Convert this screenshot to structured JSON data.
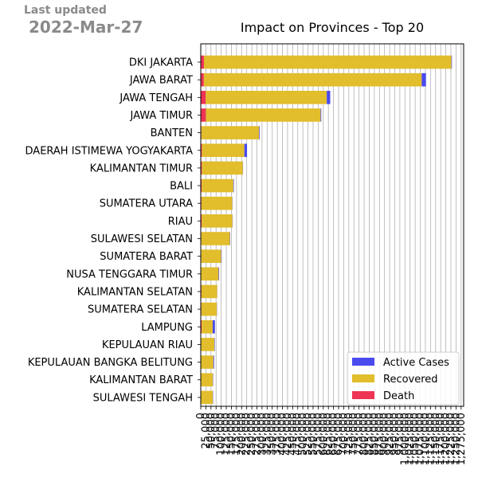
{
  "header": {
    "last_updated_label": "Last updated",
    "last_updated_date": "2022-Mar-27"
  },
  "chart_data": {
    "type": "bar",
    "orientation": "horizontal",
    "stacked": true,
    "title": "Impact on Provinces - Top 20",
    "xlabel": "",
    "ylabel": "",
    "xlim": [
      0,
      1287500
    ],
    "x_ticks": [
      0,
      25000,
      50000,
      75000,
      100000,
      125000,
      150000,
      175000,
      200000,
      225000,
      250000,
      275000,
      300000,
      325000,
      350000,
      375000,
      400000,
      425000,
      450000,
      475000,
      500000,
      525000,
      550000,
      575000,
      600000,
      625000,
      650000,
      675000,
      700000,
      725000,
      750000,
      775000,
      800000,
      825000,
      850000,
      875000,
      900000,
      925000,
      950000,
      975000,
      1000000,
      1025000,
      1050000,
      1075000,
      1100000,
      1125000,
      1150000,
      1175000,
      1200000,
      1225000,
      1250000,
      1275000
    ],
    "x_tick_labels": [
      "0",
      "25,000",
      "50,000",
      "75,000",
      "100,000",
      "125,000",
      "150,000",
      "175,000",
      "200,000",
      "225,000",
      "250,000",
      "275,000",
      "300,000",
      "325,000",
      "350,000",
      "375,000",
      "400,000",
      "425,000",
      "450,000",
      "475,000",
      "500,000",
      "525,000",
      "550,000",
      "575,000",
      "600,000",
      "625,000",
      "650,000",
      "675,000",
      "700,000",
      "725,000",
      "750,000",
      "775,000",
      "800,000",
      "825,000",
      "850,000",
      "875,000",
      "900,000",
      "925,000",
      "950,000",
      "975,000",
      "1,000,000",
      "1,025,000",
      "1,050,000",
      "1,075,000",
      "1,100,000",
      "1,125,000",
      "1,150,000",
      "1,175,000",
      "1,200,000",
      "1,225,000",
      "1,250,000",
      "1,275,000"
    ],
    "grid": "vertical",
    "legend_position": "bottom-right",
    "categories": [
      "DKI JAKARTA",
      "JAWA BARAT",
      "JAWA TENGAH",
      "JAWA TIMUR",
      "BANTEN",
      "DAERAH ISTIMEWA YOGYAKARTA",
      "KALIMANTAN TIMUR",
      "BALI",
      "SUMATERA UTARA",
      "RIAU",
      "SULAWESI SELATAN",
      "SUMATERA BARAT",
      "NUSA TENGGARA TIMUR",
      "KALIMANTAN SELATAN",
      "SUMATERA SELATAN",
      "LAMPUNG",
      "KEPULAUAN RIAU",
      "KEPULAUAN BANGKA BELITUNG",
      "KALIMANTAN BARAT",
      "SULAWESI TENGAH"
    ],
    "series": [
      {
        "name": "Death",
        "color": "#ee3355",
        "values": [
          15500,
          15000,
          24000,
          25000,
          3000,
          5500,
          5200,
          4500,
          3300,
          4400,
          2500,
          2300,
          1500,
          3400,
          3000,
          4400,
          1700,
          1800,
          1500,
          1300
        ]
      },
      {
        "name": "Recovered",
        "color": "#e2bd2c",
        "values": [
          1212000,
          1067000,
          593000,
          562000,
          283000,
          208000,
          201000,
          155000,
          151000,
          151000,
          140000,
          98000,
          86000,
          77000,
          76000,
          54000,
          65000,
          60000,
          58000,
          58000
        ]
      },
      {
        "name": "Active Cases",
        "color": "#4a4aee",
        "values": [
          2500,
          21000,
          17000,
          3000,
          3000,
          13000,
          1000,
          2500,
          1000,
          1000,
          1500,
          2000,
          2500,
          500,
          1000,
          11000,
          2000,
          3500,
          1500,
          1500
        ]
      }
    ],
    "legend_order": [
      "Active Cases",
      "Recovered",
      "Death"
    ]
  }
}
